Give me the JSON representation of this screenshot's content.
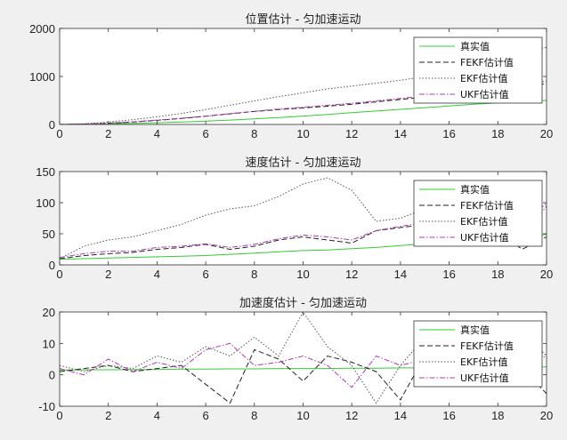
{
  "chart_data": [
    {
      "type": "line",
      "title": "位置估计 - 匀加速运动",
      "xlim": [
        0,
        20
      ],
      "ylim": [
        0,
        2000
      ],
      "xticks": [
        0,
        2,
        4,
        6,
        8,
        10,
        12,
        14,
        16,
        18,
        20
      ],
      "yticks": [
        0,
        1000,
        2000
      ],
      "legend_position": "top-right",
      "x": [
        0,
        1,
        2,
        3,
        4,
        5,
        6,
        7,
        8,
        9,
        10,
        11,
        12,
        13,
        14,
        15,
        16,
        17,
        18,
        19,
        20
      ],
      "series": [
        {
          "name": "真实值",
          "color": "#33cc33",
          "dash": "solid",
          "values": [
            0,
            5,
            12,
            22,
            35,
            50,
            70,
            90,
            115,
            145,
            175,
            210,
            245,
            280,
            315,
            350,
            385,
            420,
            450,
            475,
            500
          ]
        },
        {
          "name": "FEKF估计值",
          "color": "#222222",
          "dash": "dashed",
          "values": [
            0,
            8,
            25,
            50,
            85,
            125,
            170,
            220,
            270,
            310,
            345,
            380,
            420,
            470,
            520,
            570,
            620,
            670,
            720,
            780,
            850
          ]
        },
        {
          "name": "EKF估计值",
          "color": "#555555",
          "dash": "dotted",
          "values": [
            0,
            15,
            50,
            100,
            160,
            230,
            310,
            400,
            490,
            580,
            660,
            740,
            800,
            860,
            920,
            1000,
            1100,
            1250,
            1400,
            1550,
            1600
          ]
        },
        {
          "name": "UKF估计值",
          "color": "#b03ab0",
          "dash": "dashdot",
          "values": [
            0,
            10,
            28,
            55,
            90,
            130,
            175,
            225,
            275,
            320,
            360,
            400,
            440,
            490,
            540,
            600,
            660,
            720,
            780,
            850,
            900
          ]
        }
      ]
    },
    {
      "type": "line",
      "title": "速度估计 - 匀加速运动",
      "xlim": [
        0,
        20
      ],
      "ylim": [
        0,
        150
      ],
      "xticks": [
        0,
        2,
        4,
        6,
        8,
        10,
        12,
        14,
        16,
        18,
        20
      ],
      "yticks": [
        0,
        50,
        100,
        150
      ],
      "legend_position": "top-right",
      "x": [
        0,
        1,
        2,
        3,
        4,
        5,
        6,
        7,
        8,
        9,
        10,
        11,
        12,
        13,
        14,
        15,
        16,
        17,
        18,
        19,
        20
      ],
      "series": [
        {
          "name": "真实值",
          "color": "#33cc33",
          "dash": "solid",
          "values": [
            9,
            10,
            11,
            12,
            13,
            14,
            15,
            17,
            19,
            21,
            23,
            24,
            26,
            28,
            31,
            34,
            37,
            40,
            43,
            46,
            49
          ]
        },
        {
          "name": "FEKF估计值",
          "color": "#222222",
          "dash": "dashed",
          "values": [
            10,
            15,
            18,
            20,
            25,
            28,
            33,
            25,
            30,
            40,
            45,
            40,
            35,
            55,
            60,
            65,
            60,
            75,
            55,
            25,
            45
          ]
        },
        {
          "name": "EKF估计值",
          "color": "#555555",
          "dash": "dotted",
          "values": [
            10,
            30,
            40,
            45,
            55,
            65,
            80,
            90,
            95,
            110,
            130,
            140,
            120,
            70,
            75,
            90,
            85,
            90,
            80,
            60,
            100
          ]
        },
        {
          "name": "UKF估计值",
          "color": "#b03ab0",
          "dash": "dashdot",
          "values": [
            12,
            18,
            22,
            22,
            28,
            30,
            34,
            28,
            33,
            42,
            48,
            45,
            40,
            55,
            62,
            68,
            66,
            72,
            60,
            40,
            95
          ]
        }
      ]
    },
    {
      "type": "line",
      "title": "加速度估计 - 匀加速运动",
      "xlim": [
        0,
        20
      ],
      "ylim": [
        -10,
        20
      ],
      "xticks": [
        0,
        2,
        4,
        6,
        8,
        10,
        12,
        14,
        16,
        18,
        20
      ],
      "yticks": [
        -10,
        0,
        10,
        20
      ],
      "legend_position": "top-right",
      "x": [
        0,
        1,
        2,
        3,
        4,
        5,
        6,
        7,
        8,
        9,
        10,
        11,
        12,
        13,
        14,
        15,
        16,
        17,
        18,
        19,
        20
      ],
      "series": [
        {
          "name": "真实值",
          "color": "#33cc33",
          "dash": "solid",
          "values": [
            1.5,
            1.6,
            1.6,
            1.7,
            1.7,
            1.8,
            1.8,
            1.9,
            1.9,
            2.0,
            2.0,
            2.0,
            2.1,
            2.1,
            2.2,
            2.2,
            2.3,
            2.3,
            2.4,
            2.4,
            2.5
          ]
        },
        {
          "name": "FEKF估计值",
          "color": "#222222",
          "dash": "dashed",
          "values": [
            1,
            2,
            3,
            1,
            2,
            3,
            -3,
            -9,
            8,
            5,
            -2,
            6,
            4,
            1,
            -8,
            6,
            4,
            2,
            5,
            2,
            -6
          ]
        },
        {
          "name": "EKF估计值",
          "color": "#555555",
          "dash": "dotted",
          "values": [
            3,
            1,
            3,
            2,
            6,
            4,
            9,
            6,
            12,
            6,
            20,
            9,
            3,
            -9,
            3,
            12,
            6,
            3,
            6,
            14,
            6
          ]
        },
        {
          "name": "UKF估计值",
          "color": "#b03ab0",
          "dash": "dashdot",
          "values": [
            2,
            0,
            5,
            1,
            4,
            2,
            8,
            10,
            3,
            4,
            6,
            3,
            -4,
            6,
            3,
            5,
            3,
            5,
            8,
            3,
            6
          ]
        }
      ]
    }
  ]
}
